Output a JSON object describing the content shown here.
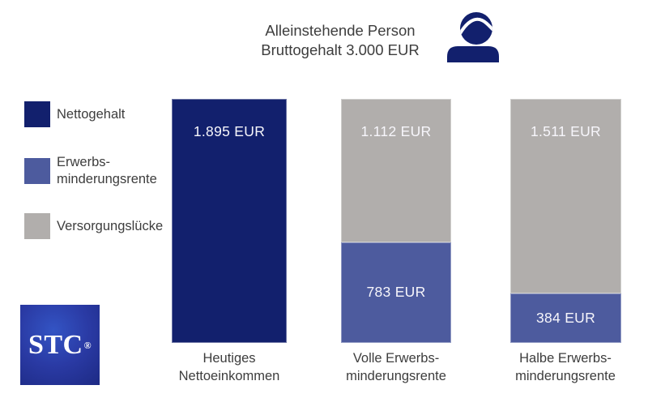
{
  "header": {
    "title_line1": "Alleinstehende Person",
    "title_line2": "Bruttogehalt 3.000 EUR"
  },
  "legend": {
    "items": [
      {
        "label": "Nettogehalt",
        "color": "#12206d"
      },
      {
        "label": "Erwerbs-\nminderungsrente",
        "color": "#4d5b9e"
      },
      {
        "label": "Versorgungslücke",
        "color": "#b1aeac"
      }
    ]
  },
  "bars": [
    {
      "category": "Heutiges\nNettoeinkommen",
      "segments": [
        {
          "name": "Nettogehalt",
          "value": 1895,
          "label": "1.895 EUR",
          "color": "#12206d"
        }
      ]
    },
    {
      "category": "Volle Erwerbs-\nminderungsrente",
      "segments": [
        {
          "name": "Versorgungslücke",
          "value": 1112,
          "label": "1.112 EUR",
          "color": "#b1aeac"
        },
        {
          "name": "Erwerbsminderungsrente",
          "value": 783,
          "label": "783 EUR",
          "color": "#4d5b9e"
        }
      ]
    },
    {
      "category": "Halbe Erwerbs-\nminderungsrente",
      "segments": [
        {
          "name": "Versorgungslücke",
          "value": 1511,
          "label": "1.511 EUR",
          "color": "#b1aeac"
        },
        {
          "name": "Erwerbsminderungsrente",
          "value": 384,
          "label": "384 EUR",
          "color": "#4d5b9e"
        }
      ]
    }
  ],
  "logo": {
    "text": "STC",
    "registered": "®"
  },
  "chart_data": {
    "type": "bar",
    "stacked": true,
    "title": "Alleinstehende Person Bruttogehalt 3.000 EUR",
    "categories": [
      "Heutiges Nettoeinkommen",
      "Volle Erwerbsminderungsrente",
      "Halbe Erwerbsminderungsrente"
    ],
    "series": [
      {
        "name": "Nettogehalt",
        "color": "#12206d",
        "values": [
          1895,
          0,
          0
        ]
      },
      {
        "name": "Erwerbsminderungsrente",
        "color": "#4d5b9e",
        "values": [
          0,
          783,
          384
        ]
      },
      {
        "name": "Versorgungslücke",
        "color": "#b1aeac",
        "values": [
          0,
          1112,
          1511
        ]
      }
    ],
    "data_labels": [
      "1.895 EUR",
      "783 EUR",
      "384 EUR",
      "1.112 EUR",
      "1.511 EUR"
    ],
    "unit": "EUR",
    "ylim": [
      0,
      1895
    ],
    "value_axis_visible": false,
    "gridlines": false,
    "legend_position": "left"
  }
}
